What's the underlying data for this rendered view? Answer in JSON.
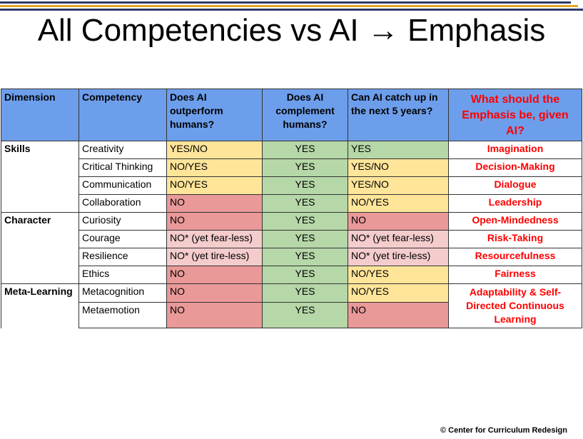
{
  "title": "All Competencies vs AI → Emphasis",
  "colors": {
    "header": "#6d9eeb",
    "yes_no": "#ffe599",
    "yes": "#b6d7a8",
    "no": "#ea9999",
    "no_star": "#f4cccc",
    "emphasis": "#ff0000"
  },
  "headers": [
    "Dimension",
    "Competency",
    "Does AI outperform humans?",
    "Does AI complement humans?",
    "Can AI catch up in the next 5 years?",
    "What should the Emphasis be, given AI?"
  ],
  "rows": [
    {
      "dimension": "Skills",
      "competency": "Creativity",
      "outperform": "YES/NO",
      "complement": "YES",
      "catchup": "YES",
      "emphasis": "Imagination"
    },
    {
      "dimension": "",
      "competency": "Critical Thinking",
      "outperform": "NO/YES",
      "complement": "YES",
      "catchup": "YES/NO",
      "emphasis": "Decision-Making"
    },
    {
      "dimension": "",
      "competency": "Communication",
      "outperform": "NO/YES",
      "complement": "YES",
      "catchup": "YES/NO",
      "emphasis": "Dialogue"
    },
    {
      "dimension": "",
      "competency": "Collaboration",
      "outperform": "NO",
      "complement": "YES",
      "catchup": "NO/YES",
      "emphasis": "Leadership"
    },
    {
      "dimension": "Character",
      "competency": "Curiosity",
      "outperform": "NO",
      "complement": "YES",
      "catchup": "NO",
      "emphasis": "Open-Mindedness"
    },
    {
      "dimension": "",
      "competency": "Courage",
      "outperform": "NO* (yet fear-less)",
      "complement": "YES",
      "catchup": "NO* (yet fear-less)",
      "emphasis": "Risk-Taking"
    },
    {
      "dimension": "",
      "competency": "Resilience",
      "outperform": "NO* (yet tire-less)",
      "complement": "YES",
      "catchup": "NO* (yet tire-less)",
      "emphasis": "Resourcefulness"
    },
    {
      "dimension": "",
      "competency": "Ethics",
      "outperform": "NO",
      "complement": "YES",
      "catchup": "NO/YES",
      "emphasis": "Fairness"
    },
    {
      "dimension": "Meta-Learning",
      "competency": "Metacognition",
      "outperform": "NO",
      "complement": "YES",
      "catchup": "NO/YES",
      "emphasis": "Adaptability & Self-Directed Continuous Learning"
    },
    {
      "dimension": "",
      "competency": "Metaemotion",
      "outperform": "NO",
      "complement": "YES",
      "catchup": "NO",
      "emphasis": ""
    }
  ],
  "footer": "© Center for Curriculum Redesign"
}
